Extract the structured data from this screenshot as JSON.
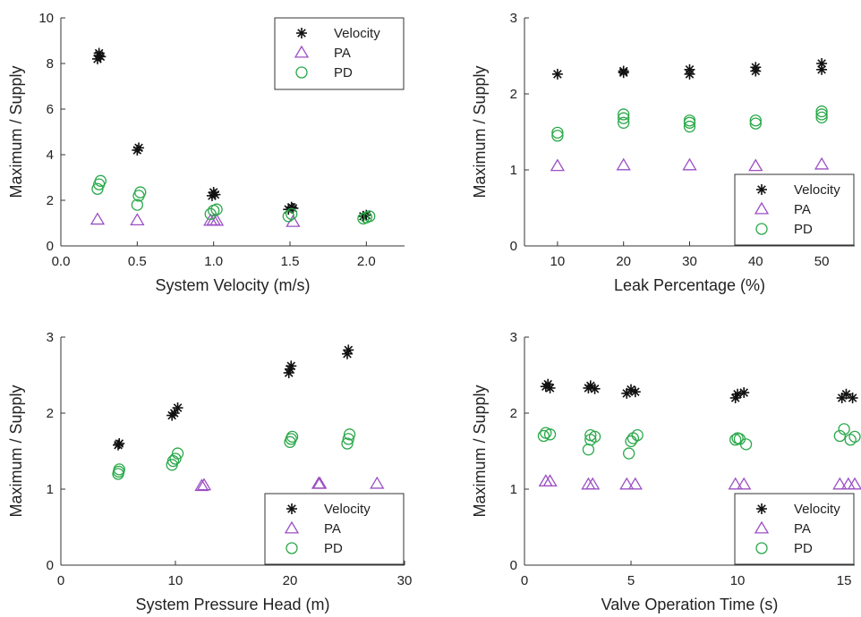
{
  "colors": {
    "velocity": "#111111",
    "pa": "#9b4fc4",
    "pd": "#2aa84a"
  },
  "legend": [
    "Velocity",
    "PA",
    "PD"
  ],
  "chart_data": [
    {
      "type": "scatter",
      "xlabel": "System Velocity (m/s)",
      "ylabel": "Maximum / Supply",
      "xlim": [
        0,
        2.25
      ],
      "ylim": [
        0,
        10
      ],
      "xticks": [
        0,
        0.5,
        1,
        1.5,
        2
      ],
      "xticklabels": [
        "0.0",
        "0.5",
        "1.0",
        "1.5",
        "2.0"
      ],
      "yticks": [
        0,
        2,
        4,
        6,
        8,
        10
      ],
      "yticklabels": [
        "0",
        "2",
        "4",
        "6",
        "8",
        "10"
      ],
      "legend_position": "top-right",
      "series": [
        {
          "name": "Velocity",
          "marker": "star",
          "x": [
            0.24,
            0.25,
            0.26,
            0.25,
            0.5,
            0.51,
            0.99,
            1.0,
            1.01,
            1.49,
            1.51,
            1.52,
            1.98,
            2.0
          ],
          "y": [
            8.2,
            8.45,
            8.3,
            8.35,
            4.2,
            4.3,
            2.2,
            2.35,
            2.25,
            1.6,
            1.7,
            1.65,
            1.3,
            1.35
          ]
        },
        {
          "name": "PA",
          "marker": "triangle",
          "x": [
            0.24,
            0.5,
            0.98,
            1.0,
            1.02,
            1.52
          ],
          "y": [
            1.15,
            1.12,
            1.1,
            1.12,
            1.1,
            1.05
          ]
        },
        {
          "name": "PD",
          "marker": "circle",
          "x": [
            0.24,
            0.25,
            0.26,
            0.5,
            0.51,
            0.52,
            0.98,
            1.0,
            1.02,
            1.49,
            1.51,
            1.98,
            2.0,
            2.02
          ],
          "y": [
            2.5,
            2.7,
            2.85,
            1.8,
            2.2,
            2.35,
            1.4,
            1.55,
            1.6,
            1.3,
            1.4,
            1.2,
            1.25,
            1.3
          ]
        }
      ]
    },
    {
      "type": "scatter",
      "xlabel": "Leak Percentage (%)",
      "ylabel": "Maximum / Supply",
      "xlim": [
        5,
        55
      ],
      "ylim": [
        0,
        3
      ],
      "xticks": [
        10,
        20,
        30,
        40,
        50
      ],
      "xticklabels": [
        "10",
        "20",
        "30",
        "40",
        "50"
      ],
      "yticks": [
        0,
        1,
        2,
        3
      ],
      "yticklabels": [
        "0",
        "1",
        "2",
        "3"
      ],
      "legend_position": "bottom-right",
      "series": [
        {
          "name": "Velocity",
          "marker": "star",
          "x": [
            10,
            20,
            20,
            30,
            30,
            40,
            40,
            50,
            50
          ],
          "y": [
            2.26,
            2.28,
            2.3,
            2.26,
            2.32,
            2.3,
            2.35,
            2.32,
            2.4
          ]
        },
        {
          "name": "PA",
          "marker": "triangle",
          "x": [
            10,
            20,
            30,
            40,
            50
          ],
          "y": [
            1.05,
            1.06,
            1.06,
            1.05,
            1.07
          ]
        },
        {
          "name": "PD",
          "marker": "circle",
          "x": [
            10,
            10,
            20,
            20,
            20,
            30,
            30,
            30,
            40,
            40,
            50,
            50,
            50
          ],
          "y": [
            1.45,
            1.49,
            1.62,
            1.68,
            1.73,
            1.57,
            1.62,
            1.65,
            1.61,
            1.65,
            1.69,
            1.73,
            1.77
          ]
        }
      ]
    },
    {
      "type": "scatter",
      "xlabel": "System Pressure Head (m)",
      "ylabel": "Maximum / Supply",
      "xlim": [
        0,
        30
      ],
      "ylim": [
        0,
        3
      ],
      "xticks": [
        0,
        10,
        20,
        30
      ],
      "xticklabels": [
        "0",
        "10",
        "20",
        "30"
      ],
      "yticks": [
        0,
        1,
        2,
        3
      ],
      "yticklabels": [
        "0",
        "1",
        "2",
        "3"
      ],
      "legend_position": "bottom-right",
      "series": [
        {
          "name": "Velocity",
          "marker": "star",
          "x": [
            5,
            5.1,
            9.7,
            9.9,
            10.2,
            19.9,
            20.0,
            20.1,
            25.0,
            25.1
          ],
          "y": [
            1.58,
            1.6,
            1.97,
            2.0,
            2.07,
            2.53,
            2.58,
            2.62,
            2.78,
            2.83
          ]
        },
        {
          "name": "PA",
          "marker": "triangle",
          "x": [
            12.3,
            12.5,
            22.5,
            22.6,
            27.6
          ],
          "y": [
            1.04,
            1.05,
            1.07,
            1.07,
            1.07
          ]
        },
        {
          "name": "PD",
          "marker": "circle",
          "x": [
            5,
            5.05,
            5.1,
            9.7,
            9.8,
            10.0,
            10.2,
            20.0,
            20.1,
            20.2,
            25.0,
            25.1,
            25.2
          ],
          "y": [
            1.2,
            1.23,
            1.26,
            1.32,
            1.37,
            1.4,
            1.47,
            1.62,
            1.66,
            1.69,
            1.6,
            1.66,
            1.72
          ]
        }
      ]
    },
    {
      "type": "scatter",
      "xlabel": "Valve Operation Time (s)",
      "ylabel": "Maximum / Supply",
      "xlim": [
        0,
        15.5
      ],
      "ylim": [
        0,
        3
      ],
      "xticks": [
        0,
        5,
        10,
        15
      ],
      "xticklabels": [
        "0",
        "5",
        "10",
        "15"
      ],
      "yticks": [
        0,
        1,
        2,
        3
      ],
      "yticklabels": [
        "0",
        "1",
        "2",
        "3"
      ],
      "legend_position": "bottom-right",
      "series": [
        {
          "name": "Velocity",
          "marker": "star",
          "x": [
            1.0,
            1.1,
            1.2,
            3.0,
            3.1,
            3.3,
            4.8,
            5.0,
            5.2,
            9.9,
            10.0,
            10.3,
            14.9,
            15.1,
            15.4
          ],
          "y": [
            2.35,
            2.38,
            2.33,
            2.33,
            2.36,
            2.32,
            2.26,
            2.31,
            2.28,
            2.2,
            2.25,
            2.27,
            2.2,
            2.25,
            2.2
          ]
        },
        {
          "name": "PA",
          "marker": "triangle",
          "x": [
            1.0,
            1.2,
            3.0,
            3.2,
            4.8,
            5.2,
            9.9,
            10.3,
            14.8,
            15.2,
            15.5
          ],
          "y": [
            1.1,
            1.1,
            1.06,
            1.06,
            1.06,
            1.06,
            1.06,
            1.06,
            1.06,
            1.06,
            1.06
          ]
        },
        {
          "name": "PD",
          "marker": "circle",
          "x": [
            0.9,
            1.0,
            1.2,
            3.0,
            3.1,
            3.3,
            3.1,
            4.9,
            5.0,
            5.3,
            5.1,
            9.9,
            10.0,
            10.1,
            10.4,
            14.8,
            15.0,
            15.3,
            15.5
          ],
          "y": [
            1.7,
            1.74,
            1.72,
            1.52,
            1.65,
            1.69,
            1.71,
            1.47,
            1.63,
            1.71,
            1.67,
            1.65,
            1.67,
            1.66,
            1.59,
            1.7,
            1.79,
            1.65,
            1.69
          ]
        }
      ]
    }
  ]
}
